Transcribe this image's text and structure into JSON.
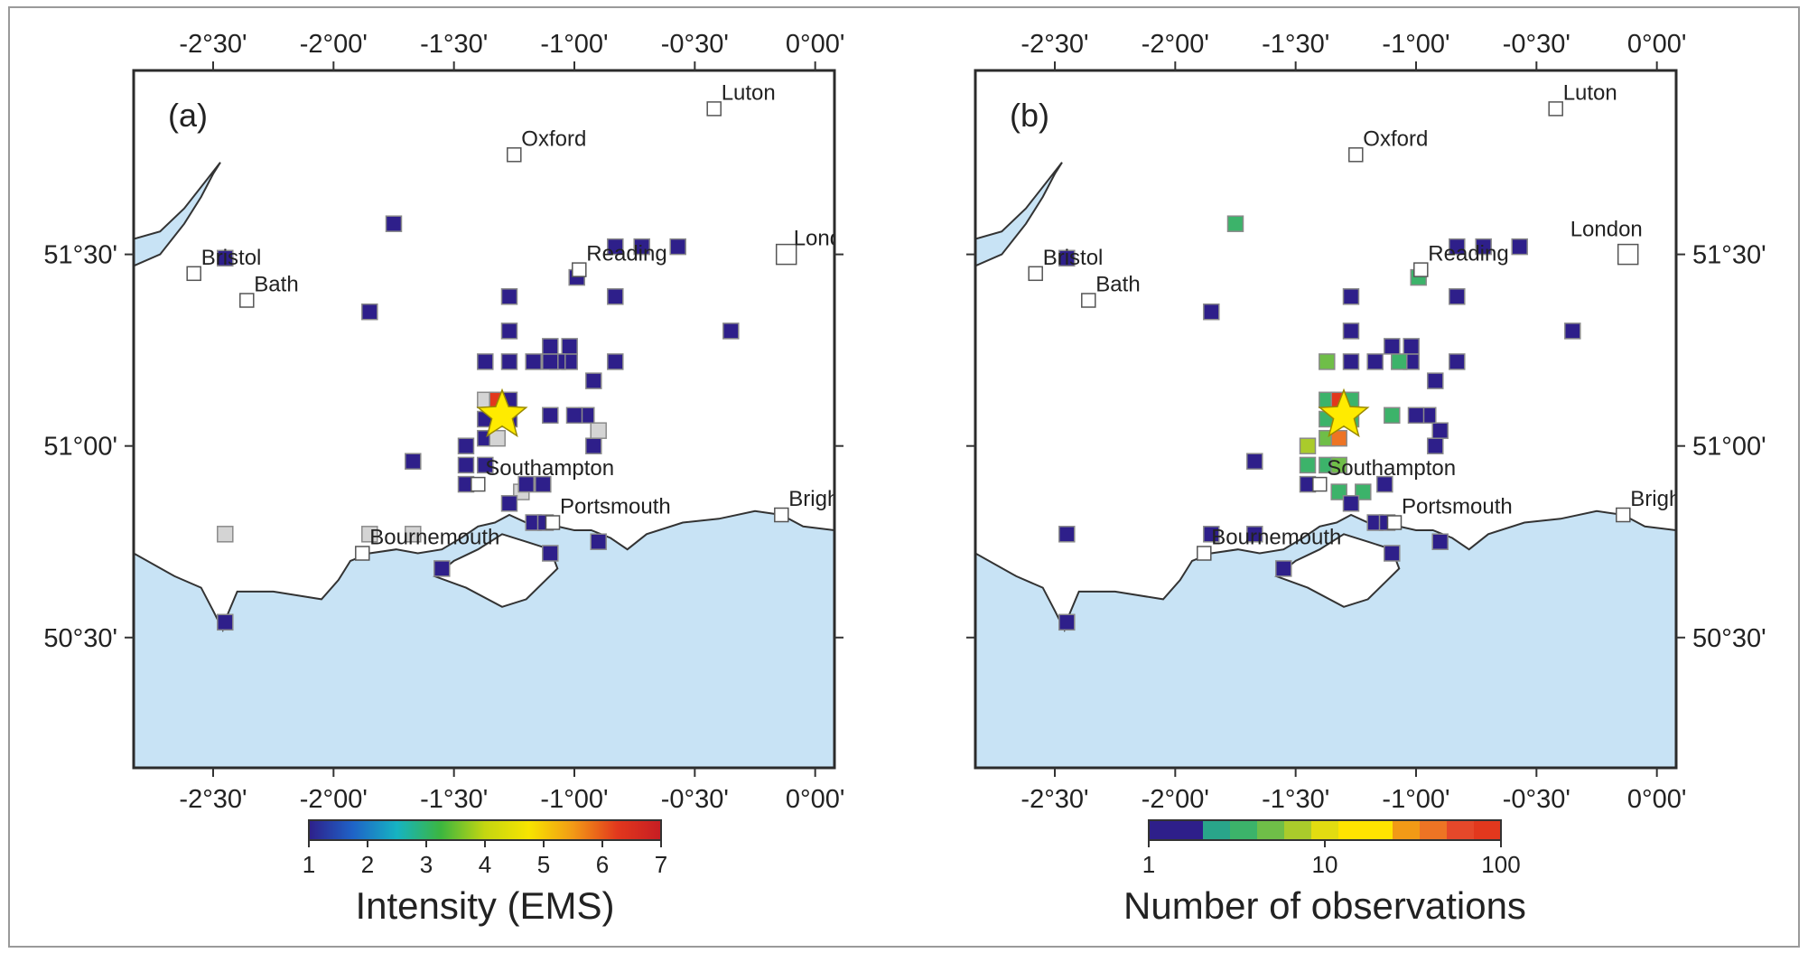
{
  "lon_ticks": [
    "-2°30'",
    "-2°00'",
    "-1°30'",
    "-1°00'",
    "-0°30'",
    "0°00'"
  ],
  "lat_ticks": [
    "51°30'",
    "51°00'",
    "50°30'"
  ],
  "colors": {
    "sea": "#c8e3f5",
    "frame": "#2b2b2b",
    "no_felt": "#d4d4d4",
    "epicenter": "#ffeb00"
  },
  "panels": [
    {
      "id": "a",
      "label": "(a)",
      "colorbar": {
        "title": "Intensity (EMS)",
        "ticks": [
          "1",
          "2",
          "3",
          "4",
          "5",
          "6",
          "7"
        ],
        "colors": [
          "#2e1f8a",
          "#1f63c7",
          "#16b3c2",
          "#3cb63f",
          "#c4d611",
          "#f7e400",
          "#f29a16",
          "#e2381d",
          "#c61d23"
        ]
      },
      "cities": [
        {
          "name": "Luton",
          "lon": -0.42,
          "lat": 51.88
        },
        {
          "name": "Oxford",
          "lon": -1.25,
          "lat": 51.76
        },
        {
          "name": "Bristol",
          "lon": -2.58,
          "lat": 51.45
        },
        {
          "name": "Bath",
          "lon": -2.36,
          "lat": 51.38
        },
        {
          "name": "Reading",
          "lon": -0.98,
          "lat": 51.46
        },
        {
          "name": "Lond",
          "lon": -0.12,
          "lat": 51.5
        },
        {
          "name": "Southampton",
          "lon": -1.4,
          "lat": 50.9
        },
        {
          "name": "Portsmouth",
          "lon": -1.09,
          "lat": 50.8
        },
        {
          "name": "Bournemouth",
          "lon": -1.88,
          "lat": 50.72
        },
        {
          "name": "Brigh",
          "lon": -0.14,
          "lat": 50.82
        }
      ],
      "cells": [
        {
          "lon": -1.37,
          "lat": 51.12,
          "value": "grey"
        },
        {
          "lon": -1.32,
          "lat": 51.12,
          "value": 6
        },
        {
          "lon": -1.27,
          "lat": 51.12,
          "value": 1
        },
        {
          "lon": -1.37,
          "lat": 51.07,
          "value": 1
        },
        {
          "lon": -1.27,
          "lat": 51.07,
          "value": 1
        },
        {
          "lon": -1.37,
          "lat": 51.02,
          "value": 1
        },
        {
          "lon": -1.32,
          "lat": 51.02,
          "value": "grey"
        },
        {
          "lon": -1.45,
          "lat": 51.0,
          "value": 1
        },
        {
          "lon": -1.45,
          "lat": 50.95,
          "value": 1
        },
        {
          "lon": -1.45,
          "lat": 50.9,
          "value": 1
        },
        {
          "lon": -1.37,
          "lat": 50.95,
          "value": 1
        },
        {
          "lon": -1.22,
          "lat": 50.88,
          "value": "grey"
        },
        {
          "lon": -1.13,
          "lat": 50.9,
          "value": 1
        },
        {
          "lon": -1.27,
          "lat": 50.85,
          "value": 1
        },
        {
          "lon": -1.17,
          "lat": 50.8,
          "value": 1
        },
        {
          "lon": -1.12,
          "lat": 50.8,
          "value": 1
        },
        {
          "lon": -1.1,
          "lat": 50.72,
          "value": 1
        },
        {
          "lon": -0.9,
          "lat": 50.75,
          "value": 1
        },
        {
          "lon": -1.2,
          "lat": 50.9,
          "value": 1
        },
        {
          "lon": -0.92,
          "lat": 51.0,
          "value": 1
        },
        {
          "lon": -0.9,
          "lat": 51.04,
          "value": "grey"
        },
        {
          "lon": -0.95,
          "lat": 51.08,
          "value": 1
        },
        {
          "lon": -1.0,
          "lat": 51.08,
          "value": 1
        },
        {
          "lon": -1.1,
          "lat": 51.08,
          "value": 1
        },
        {
          "lon": -0.92,
          "lat": 51.17,
          "value": 1
        },
        {
          "lon": -1.02,
          "lat": 51.22,
          "value": 1
        },
        {
          "lon": -1.02,
          "lat": 51.26,
          "value": 1
        },
        {
          "lon": -1.07,
          "lat": 51.22,
          "value": 1
        },
        {
          "lon": -1.1,
          "lat": 51.22,
          "value": 1
        },
        {
          "lon": -1.1,
          "lat": 51.26,
          "value": 1
        },
        {
          "lon": -1.17,
          "lat": 51.22,
          "value": 1
        },
        {
          "lon": -1.27,
          "lat": 51.22,
          "value": 1
        },
        {
          "lon": -1.27,
          "lat": 51.3,
          "value": 1
        },
        {
          "lon": -1.27,
          "lat": 51.39,
          "value": 1
        },
        {
          "lon": -1.37,
          "lat": 51.22,
          "value": 1
        },
        {
          "lon": -0.99,
          "lat": 51.44,
          "value": 1
        },
        {
          "lon": -0.83,
          "lat": 51.39,
          "value": 1
        },
        {
          "lon": -0.83,
          "lat": 51.52,
          "value": 1
        },
        {
          "lon": -0.72,
          "lat": 51.52,
          "value": 1
        },
        {
          "lon": -0.57,
          "lat": 51.52,
          "value": 1
        },
        {
          "lon": -0.83,
          "lat": 51.22,
          "value": 1
        },
        {
          "lon": -0.35,
          "lat": 51.3,
          "value": 1
        },
        {
          "lon": -1.75,
          "lat": 51.58,
          "value": 1
        },
        {
          "lon": -1.85,
          "lat": 51.35,
          "value": 1
        },
        {
          "lon": -2.45,
          "lat": 51.49,
          "value": 1
        },
        {
          "lon": -1.67,
          "lat": 50.96,
          "value": 1
        },
        {
          "lon": -2.45,
          "lat": 50.77,
          "value": "grey"
        },
        {
          "lon": -1.85,
          "lat": 50.77,
          "value": "grey"
        },
        {
          "lon": -1.67,
          "lat": 50.77,
          "value": "grey"
        },
        {
          "lon": -1.55,
          "lat": 50.68,
          "value": 1
        },
        {
          "lon": -2.45,
          "lat": 50.54,
          "value": 1
        }
      ]
    },
    {
      "id": "b",
      "label": "(b)",
      "colorbar": {
        "title": "Number of observations",
        "ticks": [
          "1",
          "10",
          "100"
        ],
        "colors": [
          "#2e1f8a",
          "#2e1f8a",
          "#29a58a",
          "#3cb36a",
          "#6fbe48",
          "#aacb2b",
          "#e2dc11",
          "#ffe400",
          "#ffe400",
          "#f29a16",
          "#ee7424",
          "#e5482a",
          "#e2381d"
        ]
      },
      "cities": [
        {
          "name": "Luton",
          "lon": -0.42,
          "lat": 51.88
        },
        {
          "name": "Oxford",
          "lon": -1.25,
          "lat": 51.76
        },
        {
          "name": "Bristol",
          "lon": -2.58,
          "lat": 51.45
        },
        {
          "name": "Bath",
          "lon": -2.36,
          "lat": 51.38
        },
        {
          "name": "Reading",
          "lon": -0.98,
          "lat": 51.46
        },
        {
          "name": "London",
          "lon": -0.12,
          "lat": 51.5
        },
        {
          "name": "Southampton",
          "lon": -1.4,
          "lat": 50.9
        },
        {
          "name": "Portsmouth",
          "lon": -1.09,
          "lat": 50.8
        },
        {
          "name": "Bournemouth",
          "lon": -1.88,
          "lat": 50.72
        },
        {
          "name": "Brighton",
          "lon": -0.14,
          "lat": 50.82
        }
      ],
      "cells": [
        {
          "lon": -1.37,
          "lat": 51.12,
          "value": 3
        },
        {
          "lon": -1.32,
          "lat": 51.12,
          "value": 100
        },
        {
          "lon": -1.27,
          "lat": 51.12,
          "value": 3
        },
        {
          "lon": -1.37,
          "lat": 51.07,
          "value": 3
        },
        {
          "lon": -1.27,
          "lat": 51.07,
          "value": 3
        },
        {
          "lon": -1.37,
          "lat": 51.02,
          "value": 4
        },
        {
          "lon": -1.32,
          "lat": 51.02,
          "value": 40
        },
        {
          "lon": -1.45,
          "lat": 51.0,
          "value": 8
        },
        {
          "lon": -1.45,
          "lat": 50.95,
          "value": 3
        },
        {
          "lon": -1.45,
          "lat": 50.9,
          "value": 1
        },
        {
          "lon": -1.37,
          "lat": 50.95,
          "value": 3
        },
        {
          "lon": -1.32,
          "lat": 50.95,
          "value": 4
        },
        {
          "lon": -1.32,
          "lat": 50.88,
          "value": 3
        },
        {
          "lon": -1.22,
          "lat": 50.88,
          "value": 3
        },
        {
          "lon": -1.13,
          "lat": 50.9,
          "value": 1
        },
        {
          "lon": -1.27,
          "lat": 50.85,
          "value": 1
        },
        {
          "lon": -1.17,
          "lat": 50.8,
          "value": 1
        },
        {
          "lon": -1.12,
          "lat": 50.8,
          "value": 1
        },
        {
          "lon": -1.1,
          "lat": 50.72,
          "value": 1
        },
        {
          "lon": -0.9,
          "lat": 50.75,
          "value": 1
        },
        {
          "lon": -0.92,
          "lat": 51.0,
          "value": 1
        },
        {
          "lon": -0.9,
          "lat": 51.04,
          "value": 1
        },
        {
          "lon": -0.95,
          "lat": 51.08,
          "value": 1
        },
        {
          "lon": -1.0,
          "lat": 51.08,
          "value": 1
        },
        {
          "lon": -1.1,
          "lat": 51.08,
          "value": 3
        },
        {
          "lon": -0.92,
          "lat": 51.17,
          "value": 1
        },
        {
          "lon": -1.02,
          "lat": 51.22,
          "value": 1
        },
        {
          "lon": -1.02,
          "lat": 51.26,
          "value": 1
        },
        {
          "lon": -1.07,
          "lat": 51.22,
          "value": 3
        },
        {
          "lon": -1.1,
          "lat": 51.26,
          "value": 1
        },
        {
          "lon": -1.17,
          "lat": 51.22,
          "value": 1
        },
        {
          "lon": -1.27,
          "lat": 51.22,
          "value": 1
        },
        {
          "lon": -1.27,
          "lat": 51.3,
          "value": 1
        },
        {
          "lon": -1.27,
          "lat": 51.39,
          "value": 1
        },
        {
          "lon": -1.37,
          "lat": 51.22,
          "value": 5
        },
        {
          "lon": -0.99,
          "lat": 51.44,
          "value": 3
        },
        {
          "lon": -0.83,
          "lat": 51.39,
          "value": 1
        },
        {
          "lon": -0.83,
          "lat": 51.52,
          "value": 1
        },
        {
          "lon": -0.72,
          "lat": 51.52,
          "value": 1
        },
        {
          "lon": -0.57,
          "lat": 51.52,
          "value": 1
        },
        {
          "lon": -0.83,
          "lat": 51.22,
          "value": 1
        },
        {
          "lon": -0.35,
          "lat": 51.3,
          "value": 1
        },
        {
          "lon": -1.75,
          "lat": 51.58,
          "value": 3
        },
        {
          "lon": -1.85,
          "lat": 51.35,
          "value": 1
        },
        {
          "lon": -2.45,
          "lat": 51.49,
          "value": 1
        },
        {
          "lon": -1.67,
          "lat": 50.96,
          "value": 1
        },
        {
          "lon": -2.45,
          "lat": 50.77,
          "value": 1
        },
        {
          "lon": -1.85,
          "lat": 50.77,
          "value": 1
        },
        {
          "lon": -1.67,
          "lat": 50.77,
          "value": 1
        },
        {
          "lon": -1.55,
          "lat": 50.68,
          "value": 1
        },
        {
          "lon": -2.45,
          "lat": 50.54,
          "value": 1
        }
      ]
    }
  ],
  "epicenter": {
    "lon": -1.3,
    "lat": 51.08
  }
}
